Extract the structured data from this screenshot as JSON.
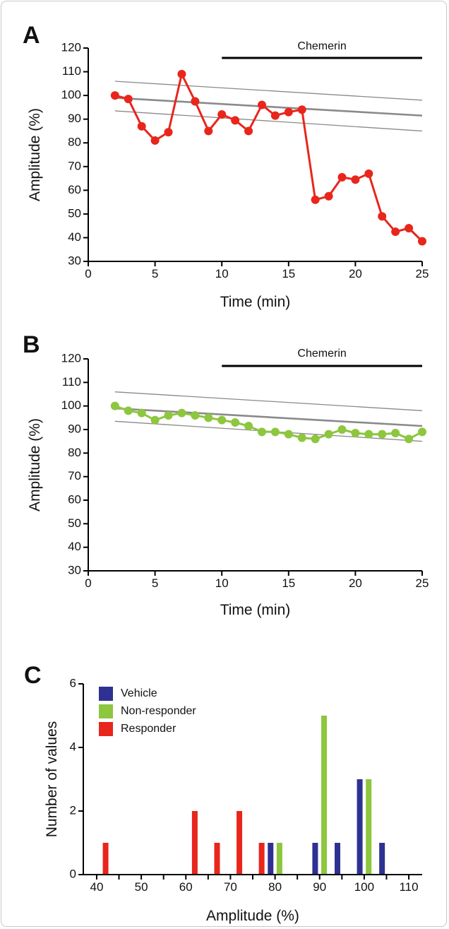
{
  "figure": {
    "panels": [
      {
        "id": "A",
        "letter": "A",
        "type": "line",
        "xlabel": "Time (min)",
        "ylabel": "Amplitude (%)",
        "xlim": [
          0,
          25
        ],
        "ylim": [
          30,
          120
        ],
        "xticks": [
          0,
          5,
          10,
          15,
          20,
          25
        ],
        "yticks": [
          30,
          40,
          50,
          60,
          70,
          80,
          90,
          100,
          110,
          120
        ],
        "annotation": {
          "label": "Chemerin",
          "x_start": 10,
          "x_end": 25
        },
        "color": "#e8261c",
        "reference_lines": {
          "color": "#8a8a8a",
          "center": [
            [
              2,
              99
            ],
            [
              25,
              91.5
            ]
          ],
          "upper": [
            [
              2,
              106
            ],
            [
              25,
              98
            ]
          ],
          "lower": [
            [
              2,
              93.5
            ],
            [
              25,
              85
            ]
          ]
        },
        "series": [
          {
            "x": [
              2,
              3,
              4,
              5,
              6,
              7,
              8,
              9,
              10,
              11,
              12,
              13,
              14,
              15,
              16,
              17,
              18,
              19,
              20,
              21,
              22,
              23,
              24,
              25
            ],
            "y": [
              100,
              98.5,
              87,
              81,
              84.5,
              109,
              97.5,
              85,
              92,
              89.5,
              85,
              96,
              91.5,
              93,
              94,
              56,
              57.5,
              65.5,
              64.5,
              67,
              49,
              42.5,
              44,
              38.5
            ]
          }
        ]
      },
      {
        "id": "B",
        "letter": "B",
        "type": "line",
        "xlabel": "Time (min)",
        "ylabel": "Amplitude (%)",
        "xlim": [
          0,
          25
        ],
        "ylim": [
          30,
          120
        ],
        "xticks": [
          0,
          5,
          10,
          15,
          20,
          25
        ],
        "yticks": [
          30,
          40,
          50,
          60,
          70,
          80,
          90,
          100,
          110,
          120
        ],
        "annotation": {
          "label": "Chemerin",
          "x_start": 10,
          "x_end": 25
        },
        "color": "#8dc63f",
        "reference_lines": {
          "color": "#8a8a8a",
          "center": [
            [
              2,
              99
            ],
            [
              25,
              91.5
            ]
          ],
          "upper": [
            [
              2,
              106
            ],
            [
              25,
              98
            ]
          ],
          "lower": [
            [
              2,
              93.5
            ],
            [
              25,
              85
            ]
          ]
        },
        "series": [
          {
            "x": [
              2,
              3,
              4,
              5,
              6,
              7,
              8,
              9,
              10,
              11,
              12,
              13,
              14,
              15,
              16,
              17,
              18,
              19,
              20,
              21,
              22,
              23,
              24,
              25
            ],
            "y": [
              100,
              98,
              97,
              94,
              96,
              97,
              96,
              95,
              94,
              93,
              91.5,
              89,
              89,
              88,
              86.5,
              86,
              88,
              90,
              88.5,
              88,
              88,
              88.5,
              86,
              89
            ]
          }
        ]
      },
      {
        "id": "C",
        "letter": "C",
        "type": "bar",
        "xlabel": "Amplitude (%)",
        "ylabel": "Number of values",
        "xlim": [
          37,
          113
        ],
        "ylim": [
          0,
          6
        ],
        "xticks": [
          40,
          50,
          60,
          70,
          80,
          90,
          100,
          110
        ],
        "xticks_minor": [
          45,
          55,
          65,
          75,
          85,
          95,
          105
        ],
        "yticks": [
          0,
          2,
          4,
          6
        ],
        "legend_position": "top-left",
        "series": [
          {
            "name": "Vehicle",
            "color": "#2e3192",
            "points": [
              [
                79,
                1
              ],
              [
                89,
                1
              ],
              [
                94,
                1
              ],
              [
                99,
                3
              ],
              [
                104,
                1
              ]
            ]
          },
          {
            "name": "Non-responder",
            "color": "#8dc63f",
            "points": [
              [
                81,
                1
              ],
              [
                91,
                5
              ],
              [
                101,
                3
              ]
            ]
          },
          {
            "name": "Responder",
            "color": "#e8261c",
            "points": [
              [
                42,
                1
              ],
              [
                62,
                2
              ],
              [
                67,
                1
              ],
              [
                72,
                2
              ],
              [
                77,
                1
              ]
            ]
          }
        ]
      }
    ]
  }
}
